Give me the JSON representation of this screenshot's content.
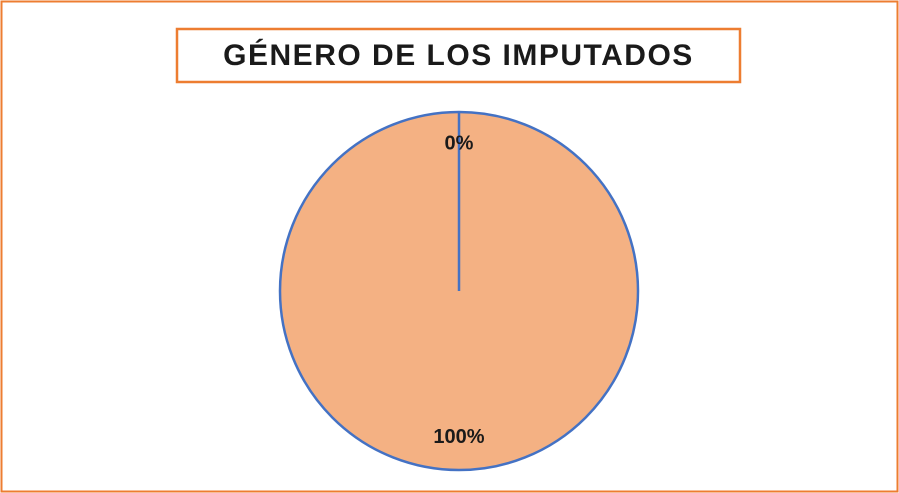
{
  "chart_data": {
    "type": "pie",
    "title": "GÉNERO DE LOS IMPUTADOS",
    "categories": [
      null,
      null
    ],
    "values": [
      0,
      100
    ],
    "value_labels": [
      "0%",
      "100%"
    ],
    "colors": [
      "#f4b183",
      "#f4b183"
    ],
    "edge_color": "#4472c4"
  }
}
